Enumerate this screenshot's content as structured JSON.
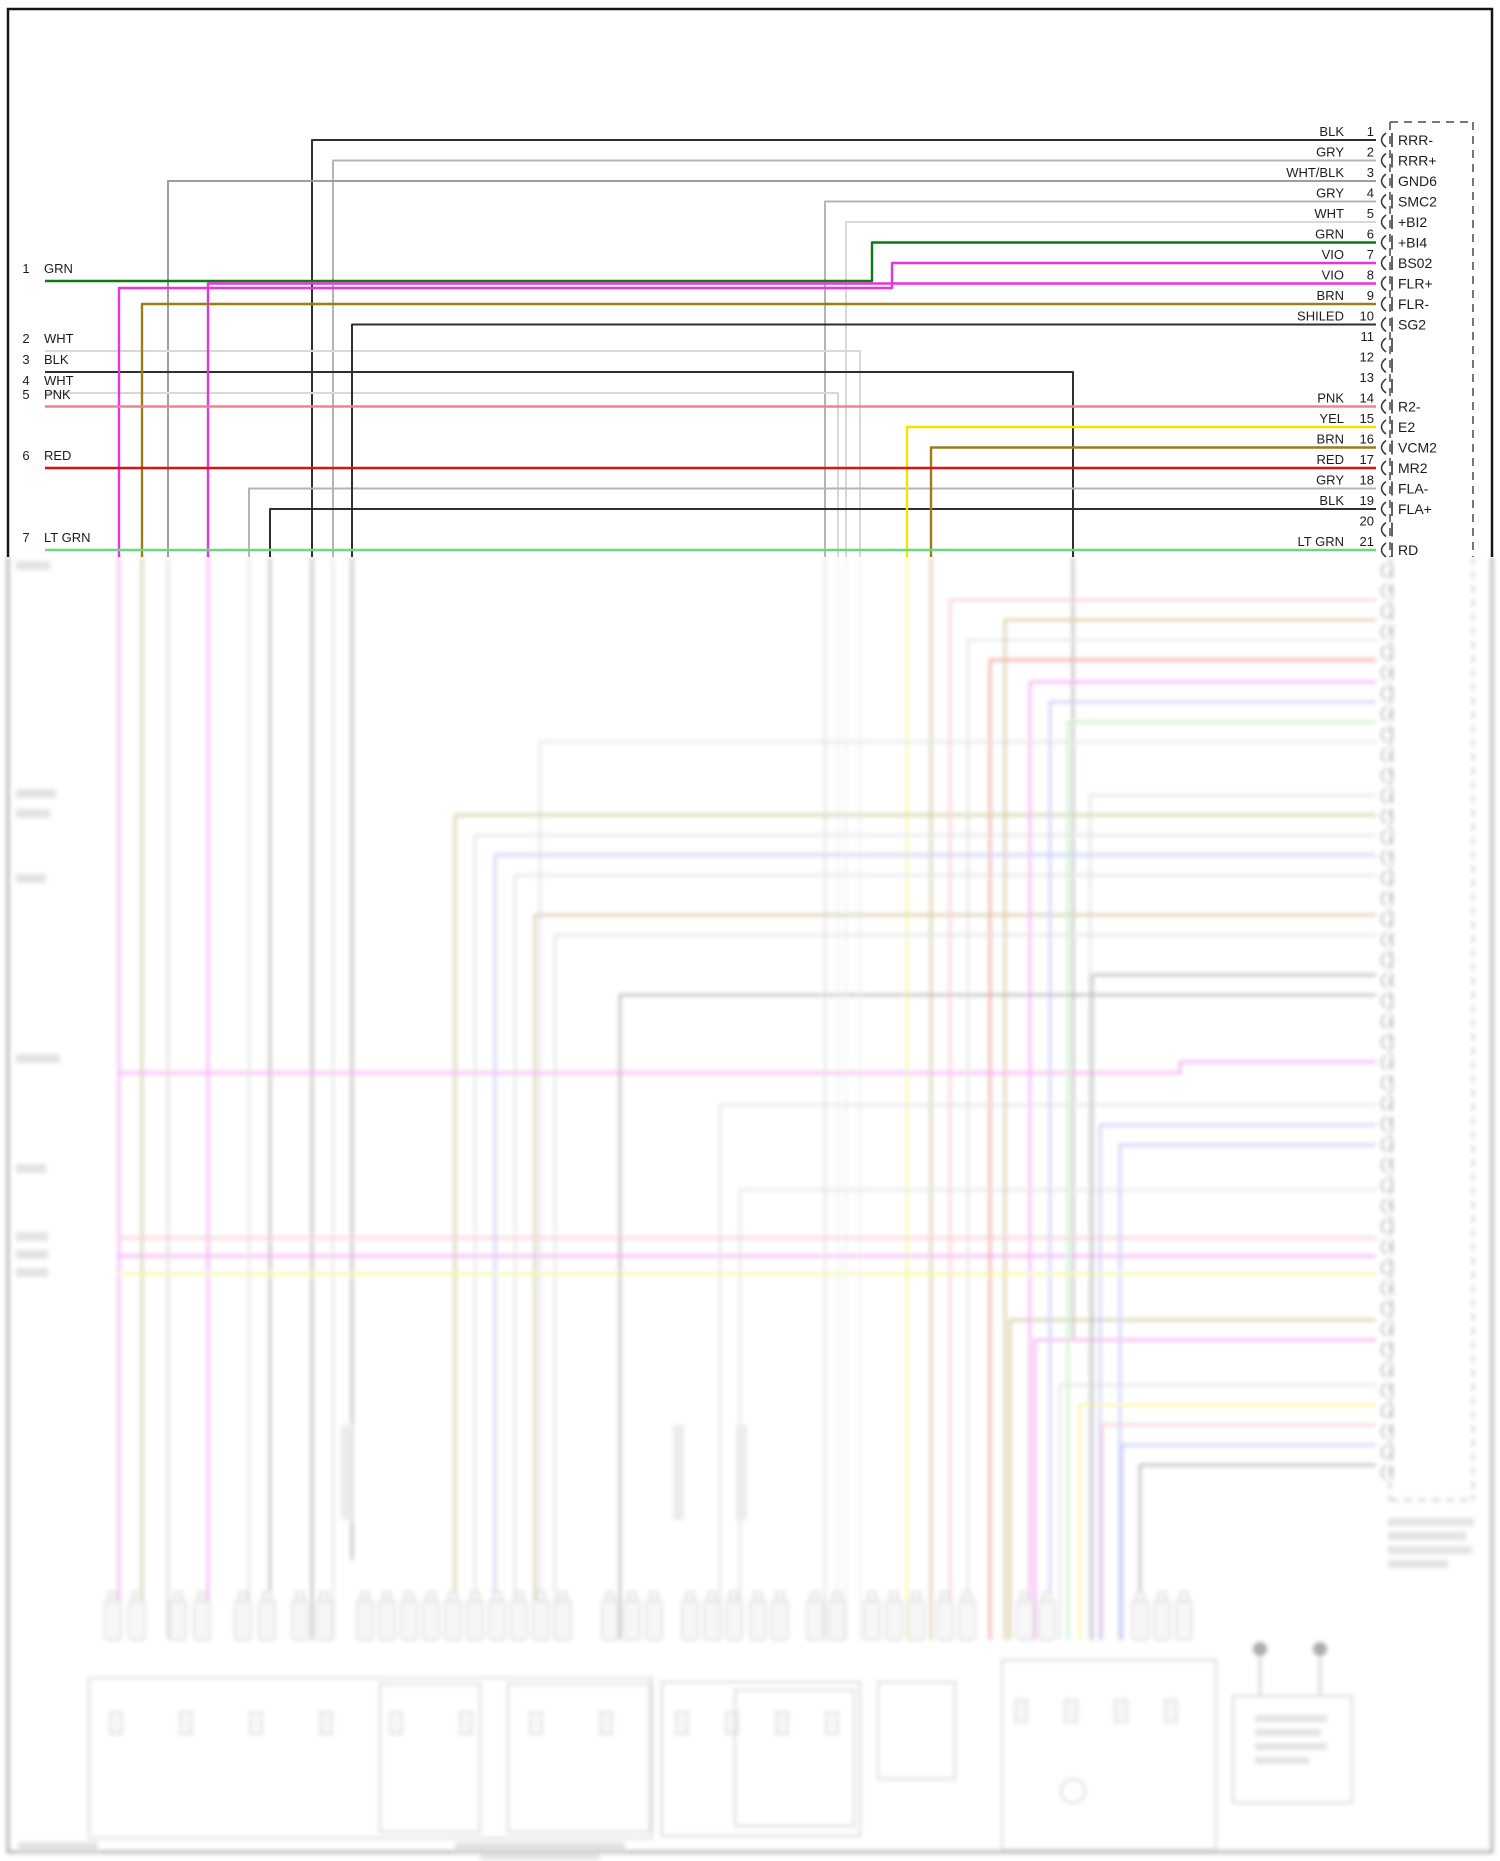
{
  "diagram": {
    "colors": {
      "BLK": "#2f2f2f",
      "GRY": "#b4b4b4",
      "WHT": "#d8d8d8",
      "WHT_BLK": "#9e9e9e",
      "GRN": "#0a7c0f",
      "LT_GRN": "#69d981",
      "VIO": "#e833e0",
      "BRN": "#9a7d17",
      "PNK": "#f0838e",
      "YEL": "#efe600",
      "RED": "#dd1212",
      "BLU": "#7583e8",
      "SHIELD": "#2f2f2f"
    },
    "left_wires": [
      {
        "num": "1",
        "color_label": "GRN"
      },
      {
        "num": "2",
        "color_label": "WHT"
      },
      {
        "num": "3",
        "color_label": "BLK"
      },
      {
        "num": "4",
        "color_label": "WHT"
      },
      {
        "num": "5",
        "color_label": "PNK"
      },
      {
        "num": "6",
        "color_label": "RED"
      },
      {
        "num": "7",
        "color_label": "LT GRN"
      }
    ],
    "connector": {
      "pins": [
        {
          "num": "1",
          "wire_color": "BLK",
          "label": "RRR-"
        },
        {
          "num": "2",
          "wire_color": "GRY",
          "label": "RRR+"
        },
        {
          "num": "3",
          "wire_color": "WHT/BLK",
          "label": "GND6"
        },
        {
          "num": "4",
          "wire_color": "GRY",
          "label": "SMC2"
        },
        {
          "num": "5",
          "wire_color": "WHT",
          "label": "+BI2"
        },
        {
          "num": "6",
          "wire_color": "GRN",
          "label": "+BI4"
        },
        {
          "num": "7",
          "wire_color": "VIO",
          "label": "BS02"
        },
        {
          "num": "8",
          "wire_color": "VIO",
          "label": "FLR+"
        },
        {
          "num": "9",
          "wire_color": "BRN",
          "label": "FLR-"
        },
        {
          "num": "10",
          "wire_color": "SHILED",
          "label": "SG2"
        },
        {
          "num": "11",
          "wire_color": "",
          "label": ""
        },
        {
          "num": "12",
          "wire_color": "",
          "label": ""
        },
        {
          "num": "13",
          "wire_color": "",
          "label": ""
        },
        {
          "num": "14",
          "wire_color": "PNK",
          "label": "R2-"
        },
        {
          "num": "15",
          "wire_color": "YEL",
          "label": "E2"
        },
        {
          "num": "16",
          "wire_color": "BRN",
          "label": "VCM2"
        },
        {
          "num": "17",
          "wire_color": "RED",
          "label": "MR2"
        },
        {
          "num": "18",
          "wire_color": "GRY",
          "label": "FLA-"
        },
        {
          "num": "19",
          "wire_color": "BLK",
          "label": "FLA+"
        },
        {
          "num": "20",
          "wire_color": "",
          "label": ""
        },
        {
          "num": "21",
          "wire_color": "LT GRN",
          "label": "RD"
        }
      ]
    }
  }
}
